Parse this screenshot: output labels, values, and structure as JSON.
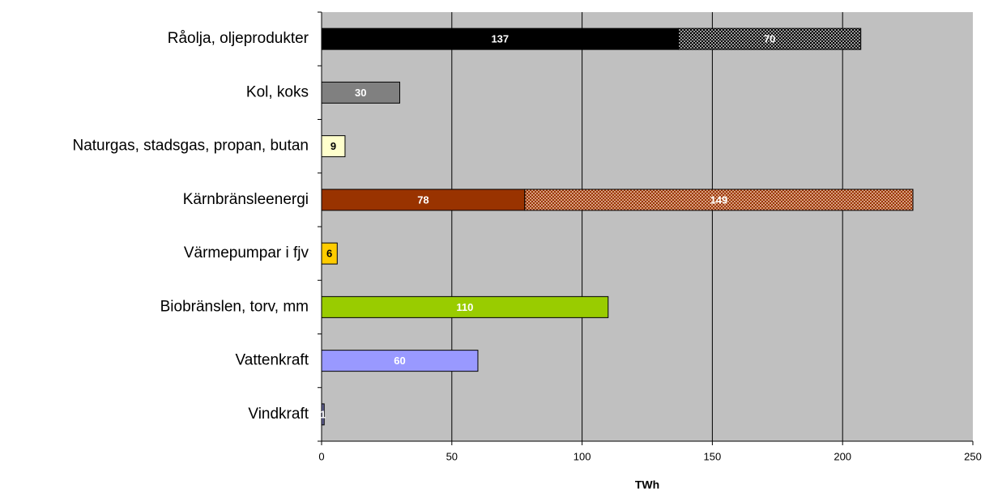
{
  "chart_data": {
    "type": "stacked-bar-horizontal",
    "x_title": "TWh",
    "categories": [
      "Råolja, oljeprodukter",
      "Kol, koks",
      "Naturgas, stadsgas, propan, butan",
      "Kärnbränsleenergi",
      "Värmepumpar i fjv",
      "Biobränslen, torv, mm",
      "Vattenkraft",
      "Vindkraft"
    ],
    "series": [
      {
        "values": [
          137,
          30,
          9,
          78,
          6,
          110,
          60,
          1
        ],
        "colors": [
          "#000000",
          "#808080",
          "#ffffcc",
          "#993300",
          "#ffcc00",
          "#99cc00",
          "#9999ff",
          "#666699"
        ],
        "label_colors": [
          "#ffffff",
          "#ffffff",
          "#000000",
          "#ffffff",
          "#000000",
          "#ffffff",
          "#ffffff",
          "#ffffff"
        ]
      },
      {
        "values": [
          70,
          null,
          null,
          149,
          null,
          null,
          null,
          null
        ],
        "pattern": "checker",
        "colors": [
          "#000000",
          null,
          null,
          "#993300",
          null,
          null,
          null,
          null
        ],
        "pattern_colors": [
          "#9a9a9a",
          null,
          null,
          "#d8a080",
          null,
          null,
          null,
          null
        ],
        "label_colors": [
          "#ffffff",
          null,
          null,
          "#ffffff",
          null,
          null,
          null,
          null
        ]
      }
    ],
    "xlim": [
      0,
      250
    ],
    "xticks": [
      0,
      50,
      100,
      150,
      200,
      250
    ],
    "grid": true,
    "plot_background": "#c0c0c0"
  }
}
